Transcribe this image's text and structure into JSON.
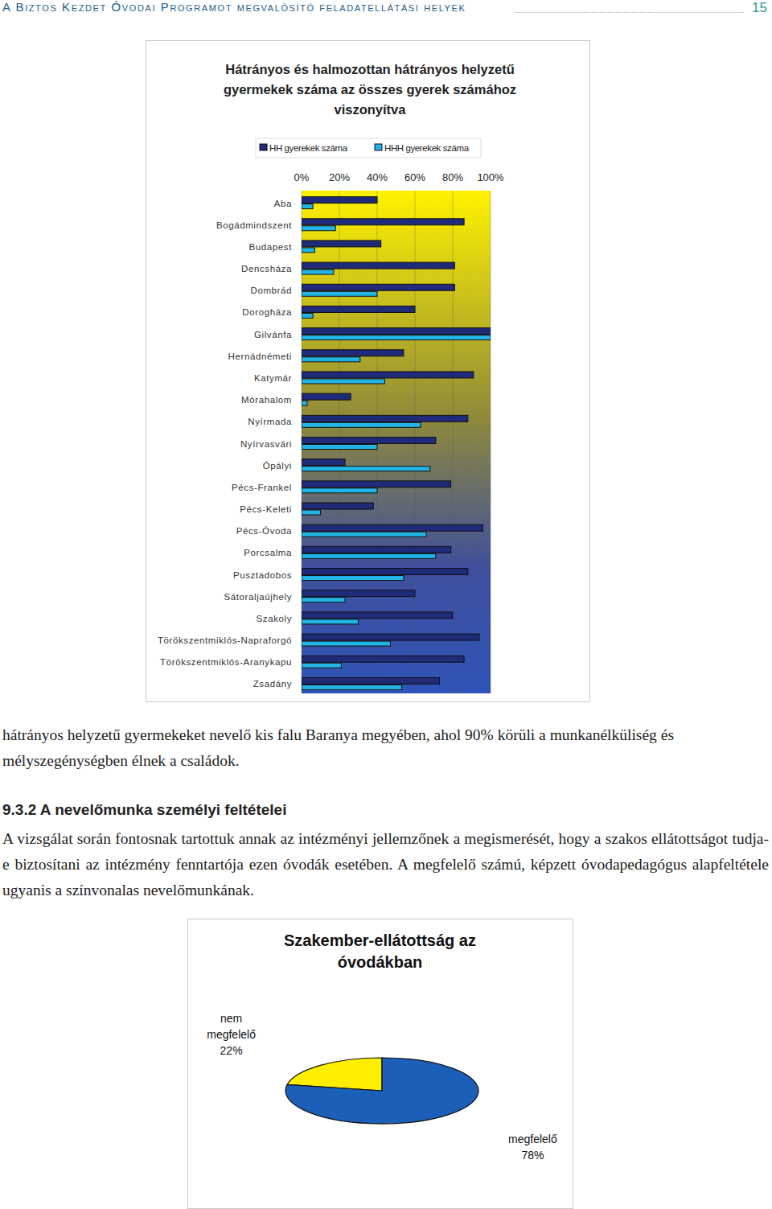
{
  "header": {
    "running_title": "A Biztos Kezdet Óvodai Programot megvalósító feladatellátási helyek",
    "page_number": "15"
  },
  "chart_data": [
    {
      "type": "bar",
      "title": "Hátrányos és halmozottan hátrányos helyzetű gyermekek száma az összes gyerek számához viszonyítva",
      "orientation": "horizontal",
      "categories": [
        "Aba",
        "Bogádmindszent",
        "Budapest",
        "Dencsháza",
        "Dombrád",
        "Dorogháza",
        "Gilvánfa",
        "Hernádnémeti",
        "Katymár",
        "Mórahalom",
        "Nyírmada",
        "Nyírvasvári",
        "Ópályi",
        "Pécs-Frankel",
        "Pécs-Keleti",
        "Pécs-Óvoda",
        "Porcsalma",
        "Pusztadobos",
        "Sátoraljaújhely",
        "Szakoly",
        "Törökszentmiklós-Napraforgó",
        "Törökszentmiklós-Aranykapu",
        "Zsadány"
      ],
      "series": [
        {
          "name": "HH gyerekek száma",
          "color": "#1f2a78",
          "values": [
            40,
            86,
            42,
            81,
            81,
            60,
            100,
            54,
            91,
            26,
            88,
            71,
            23,
            79,
            38,
            96,
            79,
            88,
            60,
            80,
            94,
            86,
            73
          ]
        },
        {
          "name": "HHH gyerekek száma",
          "color": "#22b4e6",
          "values": [
            6,
            18,
            7,
            17,
            40,
            6,
            100,
            31,
            44,
            3,
            63,
            40,
            68,
            40,
            10,
            66,
            71,
            54,
            23,
            30,
            47,
            21,
            53
          ]
        }
      ],
      "xlim": [
        0,
        100
      ],
      "xticks": [
        {
          "value": 0,
          "label": "0%"
        },
        {
          "value": 20,
          "label": "20%"
        },
        {
          "value": 40,
          "label": "40%"
        },
        {
          "value": 60,
          "label": "60%"
        },
        {
          "value": 80,
          "label": "80%"
        },
        {
          "value": 100,
          "label": "100%"
        }
      ],
      "grid": true,
      "legend": "top"
    },
    {
      "type": "pie",
      "title": "Szakember-ellátottság az óvodákban",
      "categories": [
        "nem megfelelő",
        "megfelelő"
      ],
      "values": [
        22,
        78
      ],
      "value_labels": [
        "22%",
        "78%"
      ],
      "colors": [
        "#ffee00",
        "#1b5fb8"
      ],
      "data_labels": true
    }
  ],
  "body": {
    "paragraph_1": "hátrányos helyzetű gyermekeket nevelő kis falu Baranya megyében, ahol 90% körüli a munkanélküliség és mélyszegénységben élnek a családok.",
    "heading": "9.3.2 A nevelőmunka személyi feltételei",
    "paragraph_2": "A vizsgálat során fontosnak tartottuk annak az intézményi jellemzőnek a megismerését, hogy a szakos ellátottságot tudja-e biztosítani az intézmény fenntartója ezen óvodák esetében. A megfelelő számú, képzett óvodapedagógus alapfeltétele ugyanis a színvonalas nevelőmunkának."
  }
}
